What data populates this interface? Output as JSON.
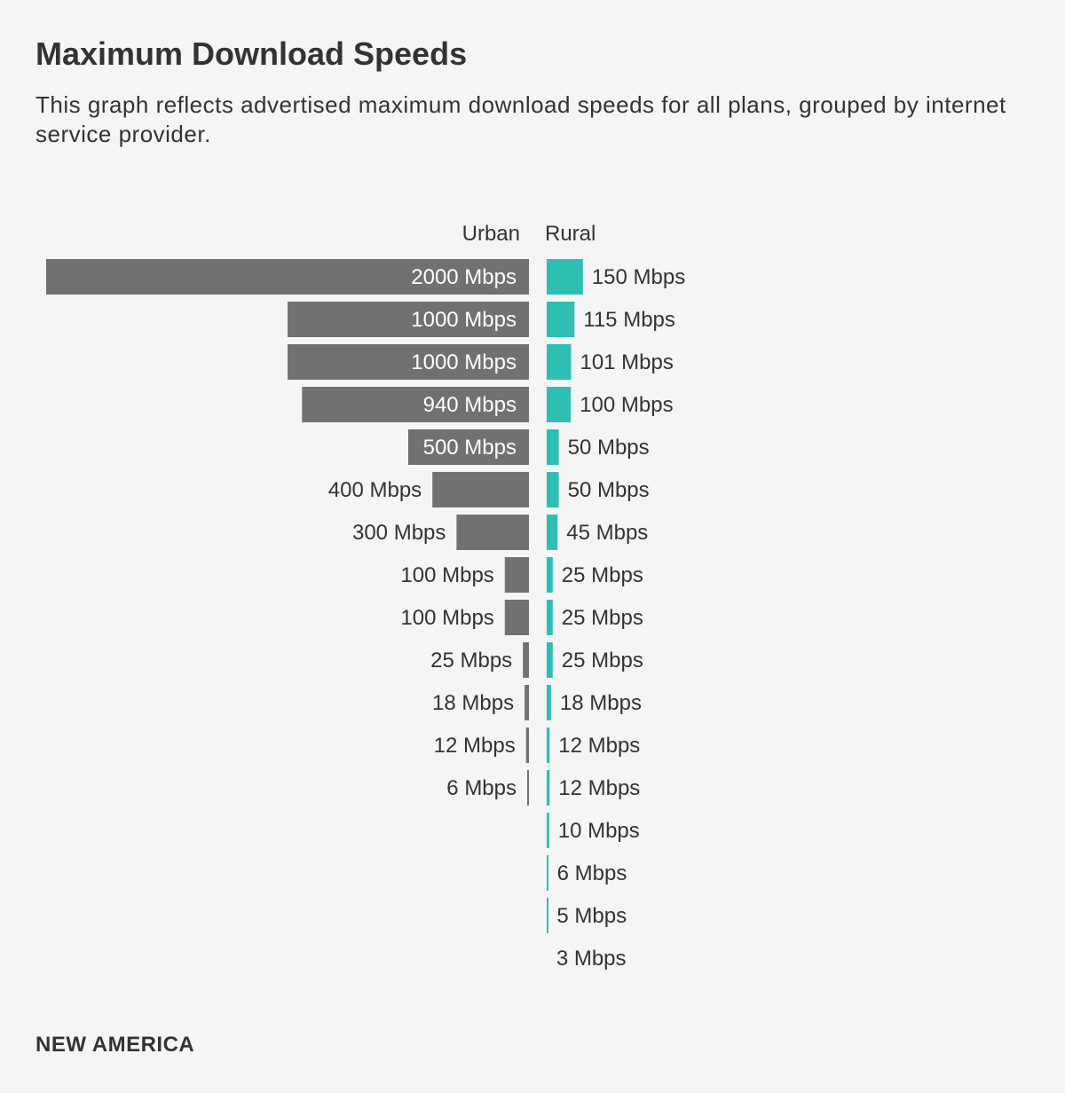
{
  "title": "Maximum Download Speeds",
  "subtitle": "This graph reflects advertised maximum download speeds for all plans, grouped by internet service provider.",
  "brand": "NEW AMERICA",
  "colors": {
    "urban_bar": "#717171",
    "rural_bar": "#2ebfb3",
    "text": "#333333",
    "inside_label": "#ffffff"
  },
  "chart_data": {
    "type": "bar",
    "orientation": "horizontal-diverging",
    "unit": "Mbps",
    "series": [
      {
        "name": "Urban",
        "values": [
          2000,
          1000,
          1000,
          940,
          500,
          400,
          300,
          100,
          100,
          25,
          18,
          12,
          6
        ],
        "labels": [
          "2000 Mbps",
          "1000 Mbps",
          "1000 Mbps",
          "940 Mbps",
          "500 Mbps",
          "400 Mbps",
          "300 Mbps",
          "100 Mbps",
          "100 Mbps",
          "25 Mbps",
          "18 Mbps",
          "12 Mbps",
          "6 Mbps"
        ]
      },
      {
        "name": "Rural",
        "values": [
          150,
          115,
          101,
          100,
          50,
          50,
          45,
          25,
          25,
          25,
          18,
          12,
          12,
          10,
          6,
          5,
          3
        ],
        "labels": [
          "150 Mbps",
          "115 Mbps",
          "101 Mbps",
          "100 Mbps",
          "50 Mbps",
          "50 Mbps",
          "45 Mbps",
          "25 Mbps",
          "25 Mbps",
          "25 Mbps",
          "18 Mbps",
          "12 Mbps",
          "12 Mbps",
          "10 Mbps",
          "6 Mbps",
          "5 Mbps",
          "3 Mbps"
        ]
      }
    ],
    "xlim": [
      0,
      2000
    ]
  }
}
